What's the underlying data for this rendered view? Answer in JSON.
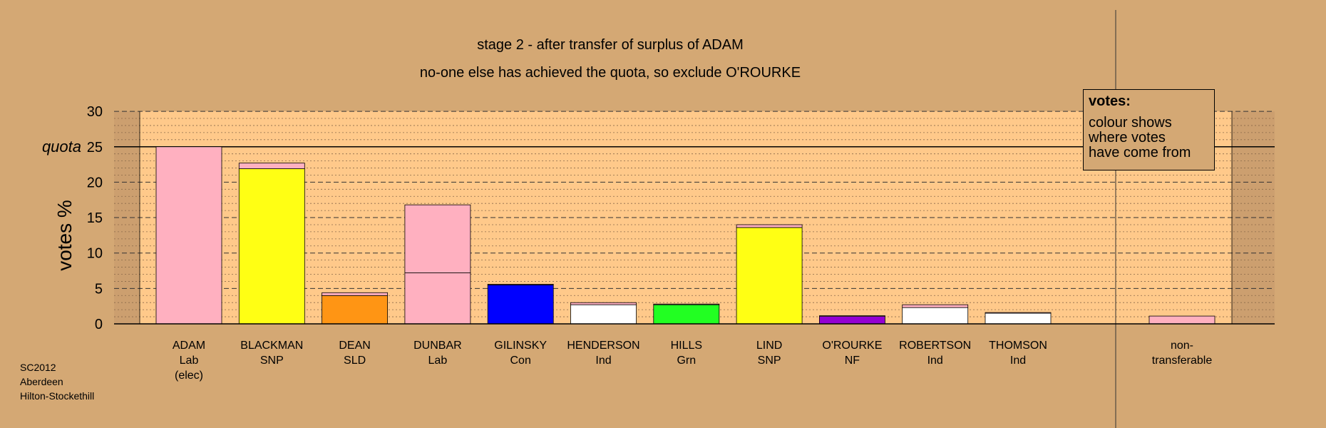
{
  "title_line1": "stage 2 - after transfer of surplus of ADAM",
  "title_line2": "no-one else has achieved the quota, so exclude O'ROURKE",
  "legend": {
    "heading": "votes:",
    "lines": [
      "colour shows",
      "where votes",
      "have come from"
    ]
  },
  "footer": [
    "SC2012",
    "Aberdeen",
    "Hilton-Stockethill"
  ],
  "colors": {
    "background": "#d4a874",
    "plot_area": "#ffc98a",
    "Lab": "#ffb0c0",
    "SNP": "#ffff14",
    "SLD": "#ff9514",
    "Con": "#0000ff",
    "Ind": "#ffffff",
    "Grn": "#22ff22",
    "NF": "#9400d3"
  },
  "chart_data": {
    "type": "bar",
    "stacked": true,
    "ylabel": "votes %",
    "ylim": [
      0,
      30
    ],
    "yticks": [
      0,
      5,
      10,
      15,
      20,
      25,
      30
    ],
    "quota": {
      "label": "quota",
      "value": 25
    },
    "grid": true,
    "categories": [
      {
        "name": "ADAM",
        "party": "Lab",
        "extra": "(elec)",
        "segments": [
          {
            "party": "Lab",
            "value": 25.0
          }
        ]
      },
      {
        "name": "BLACKMAN",
        "party": "SNP",
        "segments": [
          {
            "party": "SNP",
            "value": 21.9
          },
          {
            "party": "Lab",
            "value": 0.8
          }
        ]
      },
      {
        "name": "DEAN",
        "party": "SLD",
        "segments": [
          {
            "party": "SLD",
            "value": 4.0
          },
          {
            "party": "Lab",
            "value": 0.4
          }
        ]
      },
      {
        "name": "DUNBAR",
        "party": "Lab",
        "segments": [
          {
            "party": "Lab",
            "value": 7.2
          },
          {
            "party": "Lab",
            "value": 9.6
          }
        ]
      },
      {
        "name": "GILINSKY",
        "party": "Con",
        "segments": [
          {
            "party": "Con",
            "value": 5.5
          },
          {
            "party": "Lab",
            "value": 0.1
          }
        ]
      },
      {
        "name": "HENDERSON",
        "party": "Ind",
        "segments": [
          {
            "party": "Ind",
            "value": 2.7
          },
          {
            "party": "Lab",
            "value": 0.3
          }
        ]
      },
      {
        "name": "HILLS",
        "party": "Grn",
        "segments": [
          {
            "party": "Grn",
            "value": 2.7
          },
          {
            "party": "Lab",
            "value": 0.1
          }
        ]
      },
      {
        "name": "LIND",
        "party": "SNP",
        "segments": [
          {
            "party": "SNP",
            "value": 13.6
          },
          {
            "party": "Lab",
            "value": 0.4
          }
        ]
      },
      {
        "name": "O'ROURKE",
        "party": "NF",
        "segments": [
          {
            "party": "NF",
            "value": 1.1
          },
          {
            "party": "Lab",
            "value": 0.05
          }
        ]
      },
      {
        "name": "ROBERTSON",
        "party": "Ind",
        "segments": [
          {
            "party": "Ind",
            "value": 2.3
          },
          {
            "party": "Lab",
            "value": 0.4
          }
        ]
      },
      {
        "name": "THOMSON",
        "party": "Ind",
        "segments": [
          {
            "party": "Ind",
            "value": 1.5
          },
          {
            "party": "Lab",
            "value": 0.1
          }
        ]
      }
    ],
    "non_transferable": {
      "label_lines": [
        "non-",
        "transferable"
      ],
      "segments": [
        {
          "party": "Lab",
          "value": 1.1
        }
      ]
    }
  }
}
